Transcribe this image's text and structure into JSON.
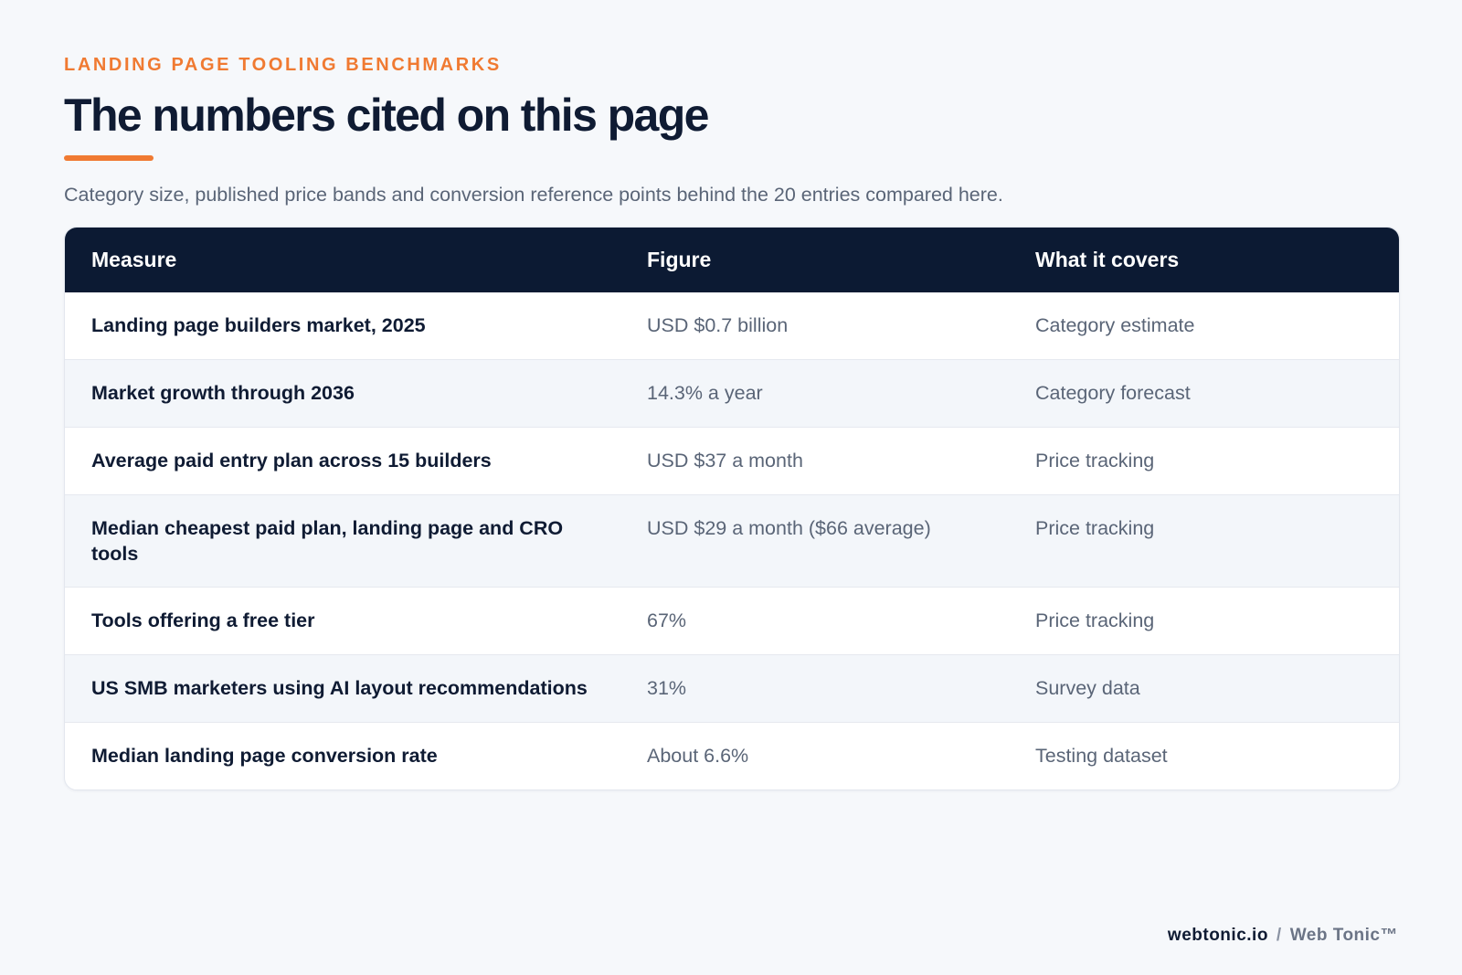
{
  "header": {
    "eyebrow": "LANDING PAGE TOOLING BENCHMARKS",
    "title": "The numbers cited on this page",
    "subtitle": "Category size, published price bands and conversion reference points behind the 20 entries compared here.",
    "accent_color": "#f07a32"
  },
  "table": {
    "columns": [
      "Measure",
      "Figure",
      "What it covers"
    ],
    "header_bg_color": "#0c1a33",
    "rows": [
      {
        "measure": "Landing page builders market, 2025",
        "figure": "USD $0.7 billion",
        "covers": "Category estimate"
      },
      {
        "measure": "Market growth through 2036",
        "figure": "14.3% a year",
        "covers": "Category forecast"
      },
      {
        "measure": "Average paid entry plan across 15 builders",
        "figure": "USD $37 a month",
        "covers": "Price tracking"
      },
      {
        "measure": "Median cheapest paid plan, landing page and CRO tools",
        "figure": "USD $29 a month ($66 average)",
        "covers": "Price tracking"
      },
      {
        "measure": "Tools offering a free tier",
        "figure": "67%",
        "covers": "Price tracking"
      },
      {
        "measure": "US SMB marketers using AI layout recommendations",
        "figure": "31%",
        "covers": "Survey data"
      },
      {
        "measure": "Median landing page conversion rate",
        "figure": "About 6.6%",
        "covers": "Testing dataset"
      }
    ]
  },
  "footer": {
    "domain": "webtonic.io",
    "separator": "/",
    "brand": "Web Tonic™"
  }
}
